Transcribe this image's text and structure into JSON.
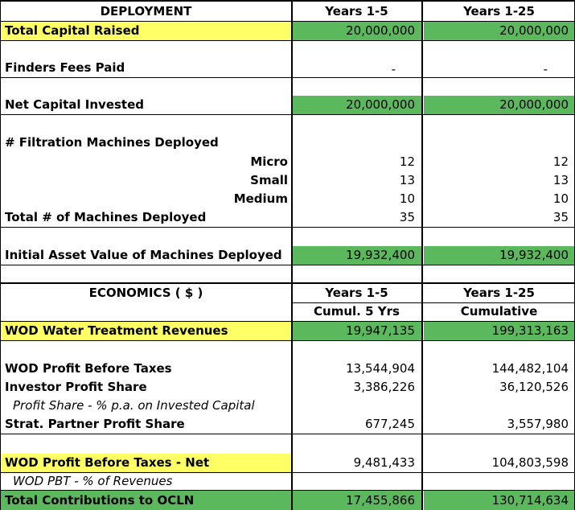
{
  "colors": {
    "yellow": "#ffff66",
    "green": "#5cb85c"
  },
  "deployment": {
    "header": "DEPLOYMENT",
    "col1": "Years 1-5",
    "col2": "Years 1-25",
    "rows": [
      {
        "id": "capital-raised",
        "label": "Total Capital Raised",
        "v1": "20,000,000",
        "v2": "20,000,000"
      },
      {
        "id": "finders-fees",
        "label": "Finders Fees Paid",
        "v1": "-",
        "v2": "-"
      },
      {
        "id": "net-capital",
        "label": "Net Capital Invested",
        "v1": "20,000,000",
        "v2": "20,000,000"
      },
      {
        "id": "machines-heading",
        "label": "# Filtration Machines Deployed",
        "v1": "",
        "v2": ""
      },
      {
        "id": "micro",
        "label": "Micro",
        "v1": "12",
        "v2": "12"
      },
      {
        "id": "small",
        "label": "Small",
        "v1": "13",
        "v2": "13"
      },
      {
        "id": "medium",
        "label": "Medium",
        "v1": "10",
        "v2": "10"
      },
      {
        "id": "total-machines",
        "label": "Total # of Machines Deployed",
        "v1": "35",
        "v2": "35"
      },
      {
        "id": "initial-asset",
        "label": "Initial Asset Value of Machines Deployed",
        "v1": "19,932,400",
        "v2": "19,932,400"
      }
    ]
  },
  "economics": {
    "header": "ECONOMICS ( $ )",
    "col1": "Years 1-5",
    "col1_sub": "Cumul. 5 Yrs",
    "col2": "Years 1-25",
    "col2_sub": "Cumulative",
    "rows": [
      {
        "id": "water-revenues",
        "label": "WOD Water Treatment Revenues",
        "v1": "19,947,135",
        "v2": "199,313,163"
      },
      {
        "id": "wod-pbt",
        "label": "WOD Profit Before Taxes",
        "v1": "13,544,904",
        "v2": "144,482,104"
      },
      {
        "id": "investor-share",
        "label": "Investor Profit Share",
        "v1": "3,386,226",
        "v2": "36,120,526"
      },
      {
        "id": "profit-share-pct",
        "label": "Profit Share - % p.a. on Invested Capital",
        "v1": "",
        "v2": ""
      },
      {
        "id": "strat-partner",
        "label": "Strat. Partner Profit Share",
        "v1": "677,245",
        "v2": "3,557,980"
      },
      {
        "id": "pbt-net",
        "label": "WOD Profit Before Taxes - Net",
        "v1": "9,481,433",
        "v2": "104,803,598"
      },
      {
        "id": "pbt-pct",
        "label": "WOD PBT - % of Revenues",
        "v1": "",
        "v2": ""
      },
      {
        "id": "total-contrib",
        "label": "Total Contributions to OCLN",
        "v1": "17,455,866",
        "v2": "130,714,634"
      }
    ]
  }
}
